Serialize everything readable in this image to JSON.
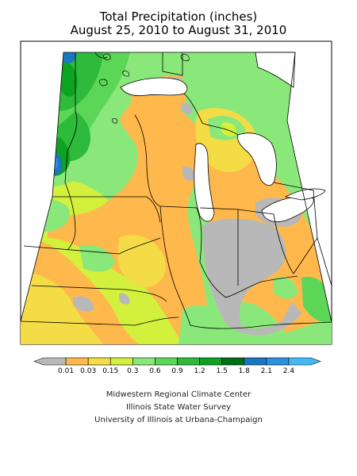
{
  "map": {
    "title_line1": "Total Precipitation (inches)",
    "title_line2": "August 25, 2010 to August 31, 2010"
  },
  "legend": {
    "breaks": [
      "0.01",
      "0.03",
      "0.15",
      "0.3",
      "0.6",
      "0.9",
      "1.2",
      "1.5",
      "1.8",
      "2.1",
      "2.4"
    ],
    "colors": [
      "#b8b8b8",
      "#ffb84c",
      "#f4dc46",
      "#d2f03c",
      "#8ae87a",
      "#5cd656",
      "#2eba3a",
      "#0ca222",
      "#007018",
      "#1a78c0",
      "#2a90e0",
      "#42b8f4"
    ]
  },
  "credits": {
    "line1": "Midwestern Regional Climate Center",
    "line2": "Illinois State Water Survey",
    "line3": "University of Illinois at Urbana-Champaign"
  }
}
